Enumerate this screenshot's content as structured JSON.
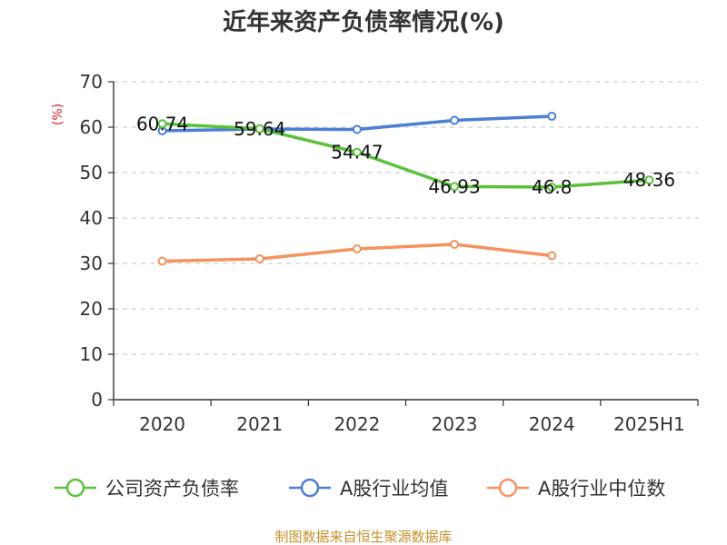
{
  "chart_data": {
    "type": "line",
    "title": "近年来资产负债率情况(%)",
    "ylabel": "(%)",
    "xlabel": "",
    "categories": [
      "2020",
      "2021",
      "2022",
      "2023",
      "2024",
      "2025H1"
    ],
    "ylim": [
      0,
      70
    ],
    "yticks": [
      0,
      10,
      20,
      30,
      40,
      50,
      60,
      70
    ],
    "grid": true,
    "legend_position": "bottom",
    "series": [
      {
        "name": "公司资产负债率",
        "color": "#5ac23a",
        "values": [
          60.74,
          59.64,
          54.47,
          46.93,
          46.8,
          48.36
        ],
        "labels": [
          "60.74",
          "59.64",
          "54.47",
          "46.93",
          "46.8",
          "48.36"
        ]
      },
      {
        "name": "A股行业均值",
        "color": "#4b7fd6",
        "values": [
          59.2,
          59.6,
          59.5,
          61.5,
          62.4,
          null
        ]
      },
      {
        "name": "A股行业中位数",
        "color": "#f5925e",
        "values": [
          30.5,
          31.0,
          33.2,
          34.2,
          31.7,
          null
        ]
      }
    ]
  },
  "source": "制图数据来自恒生聚源数据库"
}
